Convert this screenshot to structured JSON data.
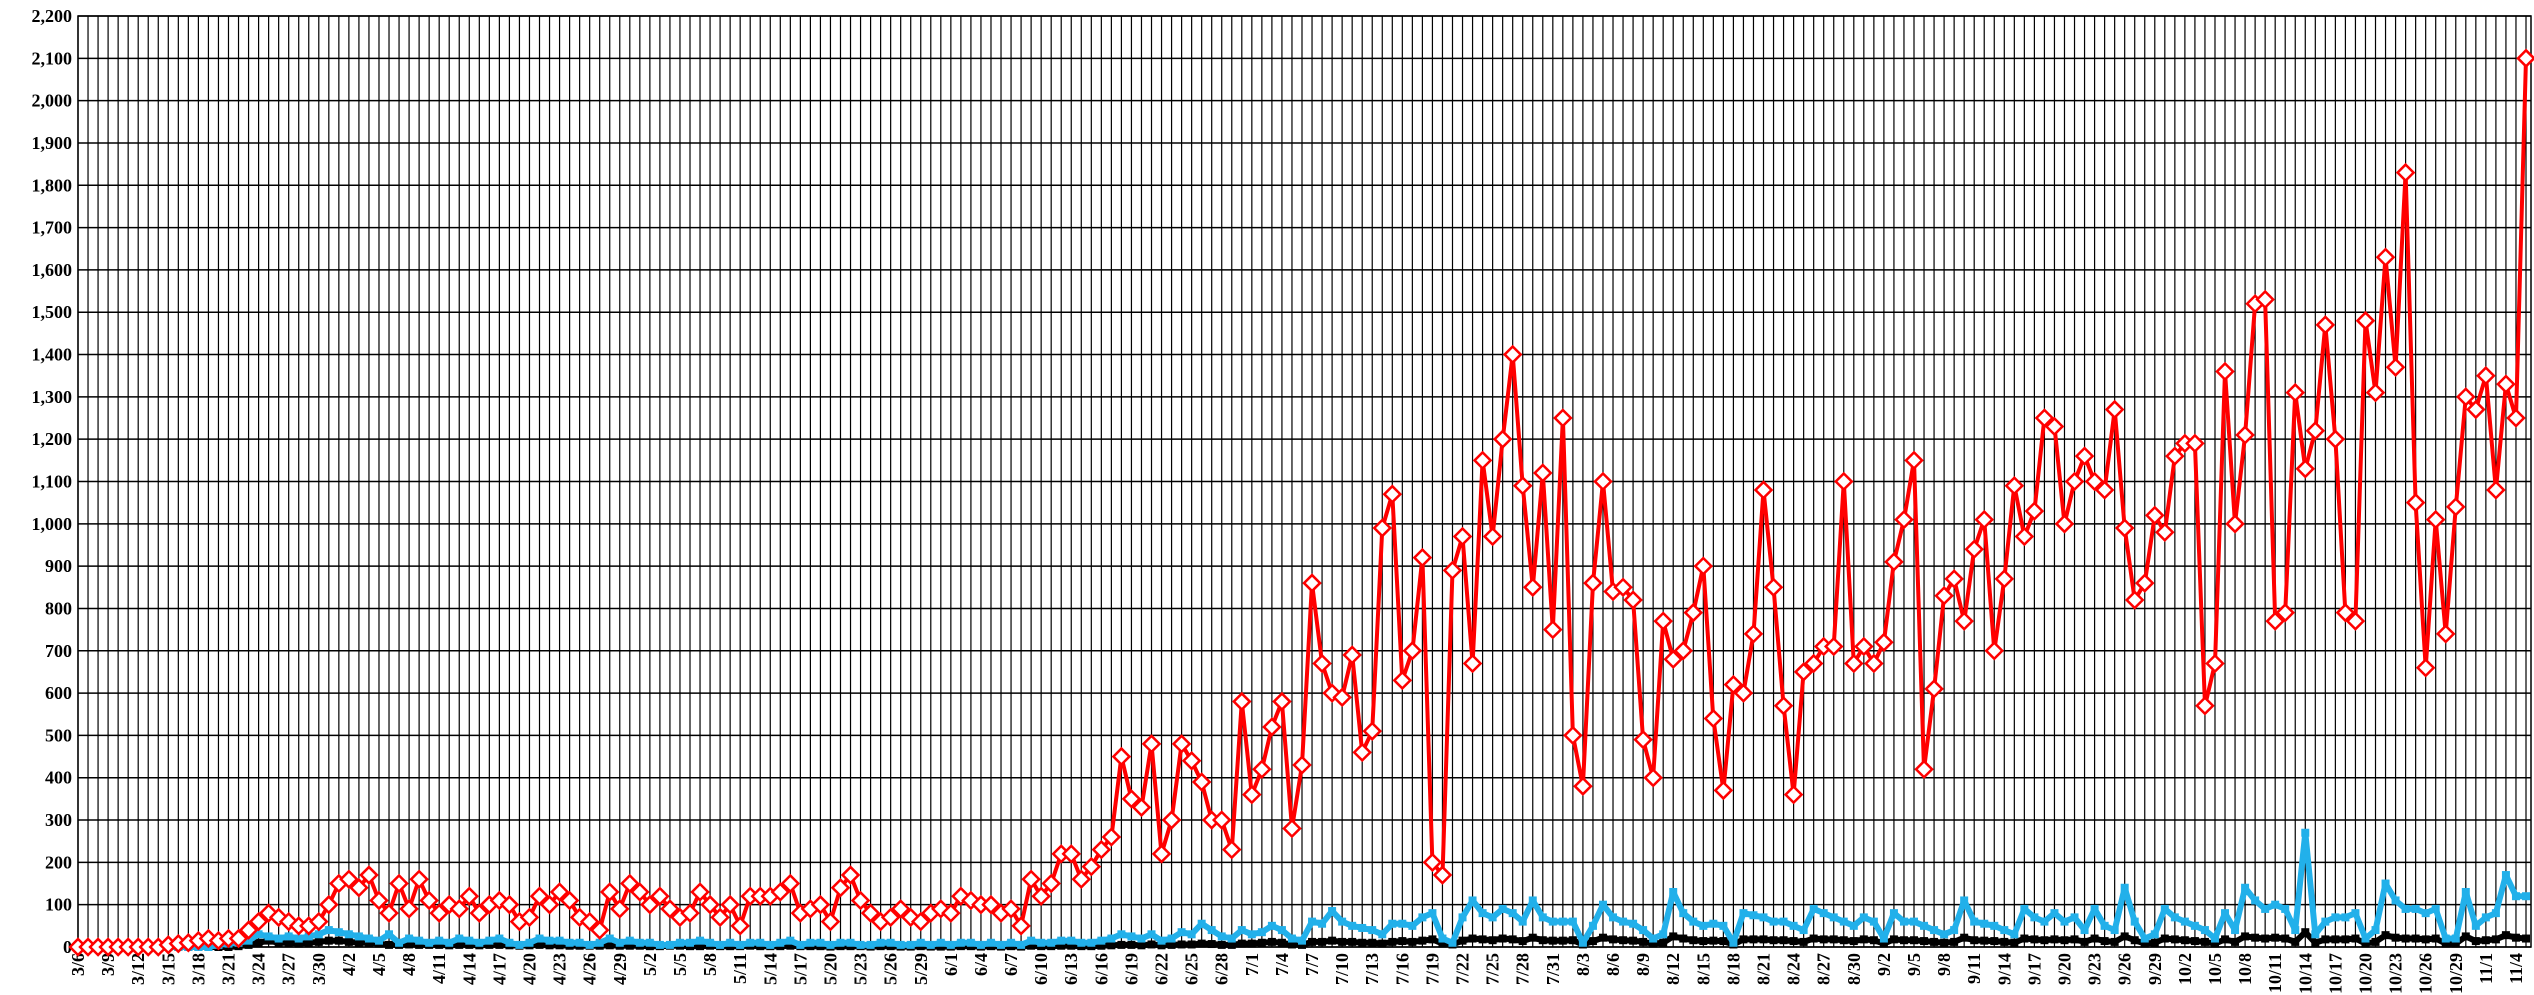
{
  "chart_data": {
    "type": "line",
    "categories": [
      "3/6",
      null,
      null,
      "3/9",
      null,
      null,
      "3/12",
      null,
      null,
      "3/15",
      null,
      null,
      "3/18",
      null,
      null,
      "3/21",
      null,
      null,
      "3/24",
      null,
      null,
      "3/27",
      null,
      null,
      "3/30",
      null,
      null,
      "4/2",
      null,
      null,
      "4/5",
      null,
      null,
      "4/8",
      null,
      null,
      "4/11",
      null,
      null,
      "4/14",
      null,
      null,
      "4/17",
      null,
      null,
      "4/20",
      null,
      null,
      "4/23",
      null,
      null,
      "4/26",
      null,
      null,
      "4/29",
      null,
      null,
      "5/2",
      null,
      null,
      "5/5",
      null,
      null,
      "5/8",
      null,
      null,
      "5/11",
      null,
      null,
      "5/14",
      null,
      null,
      "5/17",
      null,
      null,
      "5/20",
      null,
      null,
      "5/23",
      null,
      null,
      "5/26",
      null,
      null,
      "5/29",
      null,
      null,
      "6/1",
      null,
      null,
      "6/4",
      null,
      null,
      "6/7",
      null,
      null,
      "6/10",
      null,
      null,
      "6/13",
      null,
      null,
      "6/16",
      null,
      null,
      "6/19",
      null,
      null,
      "6/22",
      null,
      null,
      "6/25",
      null,
      null,
      "6/28",
      null,
      null,
      "7/1",
      null,
      null,
      "7/4",
      null,
      null,
      "7/7",
      null,
      null,
      "7/10",
      null,
      null,
      "7/13",
      null,
      null,
      "7/16",
      null,
      null,
      "7/19",
      null,
      null,
      "7/22",
      null,
      null,
      "7/25",
      null,
      null,
      "7/28",
      null,
      null,
      "7/31",
      null,
      null,
      "8/3",
      null,
      null,
      "8/6",
      null,
      null,
      "8/9",
      null,
      null,
      "8/12",
      null,
      null,
      "8/15",
      null,
      null,
      "8/18",
      null,
      null,
      "8/21",
      null,
      null,
      "8/24",
      null,
      null,
      "8/27",
      null,
      null,
      "8/30",
      null,
      null,
      "9/2",
      null,
      null,
      "9/5",
      null,
      null,
      "9/8",
      null,
      null,
      "9/11",
      null,
      null,
      "9/14",
      null,
      null,
      "9/17",
      null,
      null,
      "9/20",
      null,
      null,
      "9/23",
      null,
      null,
      "9/26",
      null,
      null,
      "9/29",
      null,
      null,
      "10/2",
      null,
      null,
      "10/5",
      null,
      null,
      "10/8",
      null,
      null,
      "10/11",
      null,
      null,
      "10/14",
      null,
      null,
      "10/17",
      null,
      null,
      "10/20",
      null,
      null,
      "10/23",
      null,
      null,
      "10/26",
      null,
      null,
      "10/29",
      null,
      null,
      "11/1",
      null,
      null,
      "11/4",
      null
    ],
    "series": [
      {
        "color": "#000000",
        "marker": "square",
        "values": [
          0,
          0,
          0,
          0,
          0,
          0,
          0,
          0,
          0,
          0,
          0,
          0,
          0,
          0,
          0,
          0,
          2,
          5,
          10,
          15,
          10,
          10,
          8,
          10,
          12,
          15,
          15,
          12,
          10,
          10,
          8,
          5,
          5,
          6,
          5,
          5,
          5,
          4,
          5,
          5,
          4,
          5,
          5,
          4,
          3,
          4,
          5,
          4,
          4,
          3,
          3,
          3,
          3,
          4,
          3,
          3,
          3,
          2,
          2,
          3,
          3,
          2,
          2,
          3,
          2,
          2,
          2,
          3,
          2,
          2,
          2,
          3,
          2,
          2,
          2,
          1,
          2,
          2,
          2,
          1,
          2,
          2,
          1,
          1,
          2,
          1,
          1,
          1,
          2,
          2,
          1,
          2,
          1,
          2,
          1,
          3,
          2,
          2,
          3,
          3,
          2,
          2,
          3,
          4,
          5,
          5,
          4,
          6,
          4,
          5,
          6,
          6,
          8,
          7,
          5,
          5,
          8,
          8,
          10,
          12,
          10,
          6,
          5,
          12,
          12,
          15,
          12,
          12,
          10,
          10,
          8,
          12,
          14,
          12,
          15,
          18,
          8,
          6,
          15,
          20,
          18,
          16,
          20,
          18,
          14,
          22,
          16,
          15,
          15,
          16,
          6,
          14,
          22,
          18,
          16,
          15,
          12,
          8,
          10,
          25,
          20,
          16,
          14,
          15,
          14,
          6,
          18,
          18,
          18,
          16,
          16,
          14,
          12,
          20,
          18,
          18,
          16,
          14,
          18,
          16,
          8,
          18,
          16,
          16,
          14,
          12,
          10,
          12,
          22,
          16,
          15,
          14,
          12,
          10,
          20,
          18,
          16,
          18,
          16,
          18,
          12,
          20,
          14,
          12,
          25,
          16,
          8,
          10,
          20,
          18,
          16,
          14,
          12,
          8,
          18,
          12,
          25,
          22,
          20,
          22,
          20,
          12,
          35,
          10,
          18,
          18,
          18,
          20,
          8,
          12,
          28,
          22,
          20,
          20,
          18,
          20,
          8,
          8,
          25,
          14,
          16,
          18,
          28,
          22,
          20
        ]
      },
      {
        "color": "#22b0ea",
        "marker": "square",
        "values": [
          0,
          0,
          0,
          0,
          0,
          0,
          0,
          0,
          0,
          0,
          0,
          0,
          0,
          0,
          5,
          8,
          10,
          15,
          30,
          25,
          20,
          25,
          20,
          25,
          30,
          40,
          35,
          30,
          25,
          20,
          15,
          30,
          10,
          20,
          15,
          10,
          15,
          10,
          20,
          15,
          10,
          15,
          20,
          10,
          5,
          10,
          20,
          15,
          15,
          10,
          10,
          5,
          10,
          20,
          10,
          15,
          10,
          10,
          5,
          5,
          10,
          10,
          15,
          10,
          5,
          10,
          5,
          10,
          10,
          5,
          10,
          15,
          5,
          10,
          10,
          5,
          10,
          10,
          5,
          5,
          10,
          10,
          5,
          5,
          10,
          5,
          10,
          5,
          10,
          10,
          5,
          10,
          5,
          10,
          5,
          15,
          10,
          10,
          15,
          15,
          10,
          10,
          15,
          20,
          30,
          25,
          20,
          30,
          15,
          20,
          35,
          30,
          55,
          40,
          25,
          20,
          40,
          30,
          35,
          50,
          40,
          20,
          15,
          60,
          55,
          85,
          60,
          50,
          45,
          40,
          30,
          55,
          55,
          50,
          70,
          80,
          20,
          10,
          70,
          110,
          80,
          70,
          90,
          80,
          60,
          110,
          70,
          60,
          60,
          60,
          10,
          50,
          100,
          70,
          60,
          55,
          40,
          20,
          30,
          130,
          80,
          60,
          50,
          55,
          50,
          10,
          80,
          75,
          70,
          60,
          60,
          50,
          40,
          90,
          80,
          70,
          60,
          50,
          70,
          60,
          20,
          80,
          60,
          60,
          50,
          40,
          30,
          40,
          110,
          60,
          55,
          50,
          40,
          30,
          90,
          70,
          60,
          80,
          60,
          70,
          40,
          90,
          50,
          40,
          140,
          60,
          20,
          30,
          90,
          70,
          60,
          50,
          40,
          20,
          80,
          40,
          140,
          110,
          90,
          100,
          90,
          40,
          270,
          30,
          60,
          70,
          70,
          80,
          20,
          40,
          150,
          110,
          90,
          90,
          80,
          90,
          20,
          20,
          130,
          50,
          70,
          80,
          170,
          120,
          120
        ]
      },
      {
        "color": "#ff0000",
        "marker": "diamond",
        "values": [
          0,
          0,
          0,
          0,
          0,
          0,
          0,
          0,
          0,
          5,
          8,
          10,
          15,
          20,
          15,
          20,
          20,
          40,
          60,
          80,
          70,
          60,
          50,
          50,
          60,
          100,
          150,
          160,
          140,
          170,
          110,
          80,
          150,
          90,
          160,
          110,
          80,
          100,
          90,
          120,
          80,
          100,
          110,
          100,
          60,
          70,
          120,
          100,
          130,
          110,
          70,
          60,
          40,
          130,
          90,
          150,
          130,
          100,
          120,
          90,
          70,
          80,
          130,
          100,
          70,
          100,
          50,
          120,
          120,
          120,
          130,
          150,
          80,
          90,
          100,
          60,
          140,
          170,
          110,
          80,
          60,
          70,
          90,
          70,
          60,
          80,
          90,
          80,
          120,
          110,
          100,
          100,
          80,
          90,
          50,
          160,
          120,
          150,
          220,
          220,
          160,
          190,
          230,
          260,
          450,
          350,
          330,
          480,
          220,
          300,
          480,
          440,
          390,
          300,
          300,
          230,
          580,
          360,
          420,
          520,
          580,
          280,
          430,
          860,
          670,
          600,
          590,
          690,
          460,
          510,
          990,
          1070,
          630,
          700,
          920,
          200,
          170,
          890,
          970,
          670,
          1150,
          970,
          1200,
          1400,
          1090,
          850,
          1120,
          750,
          1250,
          500,
          380,
          860,
          1100,
          840,
          850,
          820,
          490,
          400,
          770,
          680,
          700,
          790,
          900,
          540,
          370,
          620,
          600,
          740,
          1080,
          850,
          570,
          360,
          650,
          670,
          710,
          710,
          1100,
          670,
          710,
          670,
          720,
          910,
          1010,
          1150,
          420,
          610,
          830,
          870,
          770,
          940,
          1010,
          700,
          870,
          1090,
          970,
          1030,
          1250,
          1230,
          1000,
          1100,
          1160,
          1100,
          1080,
          1270,
          990,
          820,
          860,
          1020,
          980,
          1160,
          1190,
          1190,
          570,
          670,
          1360,
          1000,
          1210,
          1520,
          1530,
          770,
          790,
          1310,
          1130,
          1220,
          1470,
          1200,
          790,
          770,
          1480,
          1310,
          1630,
          1370,
          1830,
          1050,
          660,
          1010,
          740,
          1040,
          1300,
          1270,
          1350,
          1080,
          1330,
          1250,
          2100
        ]
      }
    ],
    "ylim": [
      0,
      2200
    ],
    "yticks": [
      0,
      100,
      200,
      300,
      400,
      500,
      600,
      700,
      800,
      900,
      {
        "value": 1000,
        "label": "1,000"
      },
      {
        "value": 1100,
        "label": "1,100"
      },
      {
        "value": 1200,
        "label": "1,200"
      },
      {
        "value": 1300,
        "label": "1,300"
      },
      {
        "value": 1400,
        "label": "1,400"
      },
      {
        "value": 1500,
        "label": "1,500"
      },
      {
        "value": 1600,
        "label": "1,600"
      },
      {
        "value": 1700,
        "label": "1,700"
      },
      {
        "value": 1800,
        "label": "1,800"
      },
      {
        "value": 1900,
        "label": "1,900"
      },
      {
        "value": 2000,
        "label": "2,000"
      },
      {
        "value": 2100,
        "label": "2,100"
      },
      {
        "value": 2200,
        "label": "2,200"
      }
    ],
    "grid": true
  }
}
